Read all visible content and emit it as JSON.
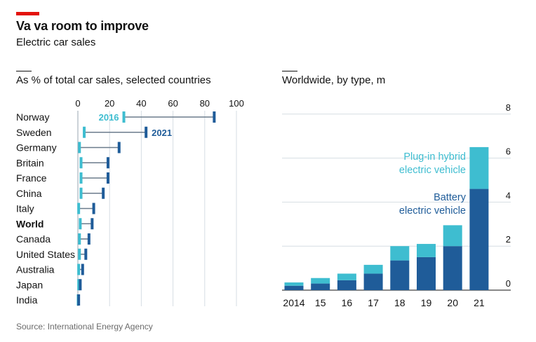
{
  "header": {
    "title": "Va va room to improve",
    "subtitle": "Electric car sales"
  },
  "source": "Source: International Energy Agency",
  "colors": {
    "red": "#e3120b",
    "light_blue": "#3ebdd0",
    "dark_blue": "#1f5c99",
    "grid": "#d6dde3",
    "connector": "#6b7b8c",
    "text": "#121212",
    "muted": "#6b6b6b"
  },
  "chart_data": [
    {
      "type": "dumbbell",
      "title": "As % of total car sales, selected countries",
      "xlim": [
        0,
        100
      ],
      "xticks": [
        "0",
        "20",
        "40",
        "60",
        "80",
        "100"
      ],
      "legend": {
        "start_label": "2016",
        "end_label": "2021"
      },
      "series_names": [
        "2016",
        "2021"
      ],
      "rows": [
        {
          "country": "Norway",
          "v2016": 29,
          "v2021": 86,
          "bold": false
        },
        {
          "country": "Sweden",
          "v2016": 4,
          "v2021": 43,
          "bold": false
        },
        {
          "country": "Germany",
          "v2016": 1,
          "v2021": 26,
          "bold": false
        },
        {
          "country": "Britain",
          "v2016": 2,
          "v2021": 19,
          "bold": false
        },
        {
          "country": "France",
          "v2016": 2,
          "v2021": 19,
          "bold": false
        },
        {
          "country": "China",
          "v2016": 2,
          "v2021": 16,
          "bold": false
        },
        {
          "country": "Italy",
          "v2016": 0.5,
          "v2021": 10,
          "bold": false
        },
        {
          "country": "World",
          "v2016": 1.5,
          "v2021": 9,
          "bold": true
        },
        {
          "country": "Canada",
          "v2016": 1,
          "v2021": 7,
          "bold": false
        },
        {
          "country": "United States",
          "v2016": 1,
          "v2021": 5,
          "bold": false
        },
        {
          "country": "Australia",
          "v2016": 0.5,
          "v2021": 3,
          "bold": false
        },
        {
          "country": "Japan",
          "v2016": 0.5,
          "v2021": 1.5,
          "bold": false
        },
        {
          "country": "India",
          "v2016": 0.2,
          "v2021": 0.5,
          "bold": false
        }
      ]
    },
    {
      "type": "bar",
      "stacked": true,
      "title": "Worldwide, by type, m",
      "categories": [
        "2014",
        "15",
        "16",
        "17",
        "18",
        "19",
        "20",
        "21"
      ],
      "ylim": [
        0,
        8
      ],
      "yticks": [
        "0",
        "2",
        "4",
        "6",
        "8"
      ],
      "series": [
        {
          "name": "Battery electric vehicle",
          "values": [
            0.2,
            0.3,
            0.45,
            0.75,
            1.35,
            1.5,
            2.0,
            4.6
          ]
        },
        {
          "name": "Plug-in hybrid electric vehicle",
          "values": [
            0.15,
            0.25,
            0.3,
            0.4,
            0.65,
            0.6,
            0.95,
            1.9
          ]
        }
      ],
      "labels": {
        "phev": [
          "Plug-in hybrid",
          "electric vehicle"
        ],
        "bev": [
          "Battery",
          "electric vehicle"
        ]
      }
    }
  ]
}
